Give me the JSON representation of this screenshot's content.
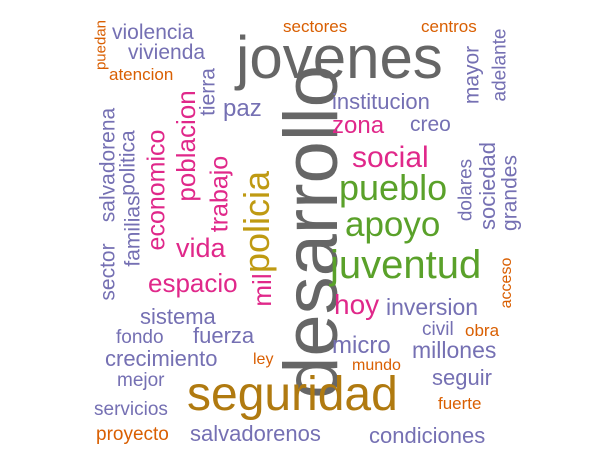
{
  "colors": {
    "gray": "#666666",
    "gold": "#B07A10",
    "olive": "#BF9A12",
    "green": "#5AA12A",
    "pink": "#E0288A",
    "purple": "#7570B3",
    "orange": "#D95F02"
  },
  "words": [
    {
      "text": "desarrollo",
      "color": "gray"
    },
    {
      "text": "jovenes",
      "color": "gray"
    },
    {
      "text": "seguridad",
      "color": "gold"
    },
    {
      "text": "policia",
      "color": "olive"
    },
    {
      "text": "juventud",
      "color": "green"
    },
    {
      "text": "pueblo",
      "color": "green"
    },
    {
      "text": "apoyo",
      "color": "green"
    },
    {
      "text": "social",
      "color": "pink"
    },
    {
      "text": "zona",
      "color": "pink"
    },
    {
      "text": "hoy",
      "color": "pink"
    },
    {
      "text": "poblacion",
      "color": "pink"
    },
    {
      "text": "economico",
      "color": "pink"
    },
    {
      "text": "trabajo",
      "color": "pink"
    },
    {
      "text": "vida",
      "color": "pink"
    },
    {
      "text": "espacio",
      "color": "pink"
    },
    {
      "text": "mil",
      "color": "pink"
    },
    {
      "text": "violencia",
      "color": "purple"
    },
    {
      "text": "vivienda",
      "color": "purple"
    },
    {
      "text": "tierra",
      "color": "purple"
    },
    {
      "text": "paz",
      "color": "purple"
    },
    {
      "text": "institucion",
      "color": "purple"
    },
    {
      "text": "creo",
      "color": "purple"
    },
    {
      "text": "mayor",
      "color": "purple"
    },
    {
      "text": "adelante",
      "color": "purple"
    },
    {
      "text": "salvadorena",
      "color": "purple"
    },
    {
      "text": "politica",
      "color": "purple"
    },
    {
      "text": "familias",
      "color": "purple"
    },
    {
      "text": "sector",
      "color": "purple"
    },
    {
      "text": "sistema",
      "color": "purple"
    },
    {
      "text": "fuerza",
      "color": "purple"
    },
    {
      "text": "fondo",
      "color": "purple"
    },
    {
      "text": "crecimiento",
      "color": "purple"
    },
    {
      "text": "mejor",
      "color": "purple"
    },
    {
      "text": "servicios",
      "color": "purple"
    },
    {
      "text": "salvadorenos",
      "color": "purple"
    },
    {
      "text": "condiciones",
      "color": "purple"
    },
    {
      "text": "micro",
      "color": "purple"
    },
    {
      "text": "millones",
      "color": "purple"
    },
    {
      "text": "seguir",
      "color": "purple"
    },
    {
      "text": "inversion",
      "color": "purple"
    },
    {
      "text": "civil",
      "color": "purple"
    },
    {
      "text": "dolares",
      "color": "purple"
    },
    {
      "text": "sociedad",
      "color": "purple"
    },
    {
      "text": "grandes",
      "color": "purple"
    },
    {
      "text": "sectores",
      "color": "orange"
    },
    {
      "text": "centros",
      "color": "orange"
    },
    {
      "text": "puedan",
      "color": "orange"
    },
    {
      "text": "atencion",
      "color": "orange"
    },
    {
      "text": "acceso",
      "color": "orange"
    },
    {
      "text": "obra",
      "color": "orange"
    },
    {
      "text": "mundo",
      "color": "orange"
    },
    {
      "text": "ley",
      "color": "orange"
    },
    {
      "text": "fuerte",
      "color": "orange"
    },
    {
      "text": "proyecto",
      "color": "orange"
    }
  ]
}
